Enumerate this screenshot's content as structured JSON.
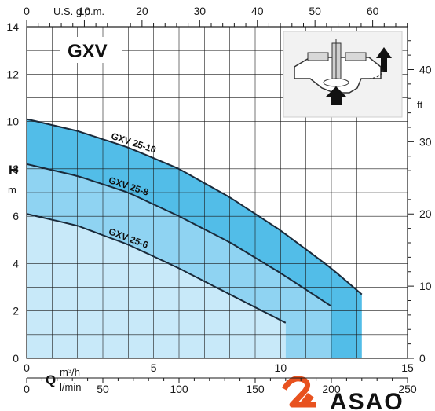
{
  "chart_data": {
    "type": "line",
    "title": "GXV",
    "y_axis": {
      "symbol": "H",
      "unit": "m",
      "range": [
        0,
        14
      ],
      "ticks": [
        "0",
        "2",
        "4",
        "6",
        "8",
        "10",
        "12",
        "14"
      ]
    },
    "y_axis_right": {
      "unit": "ft",
      "ticks": [
        "0",
        "10",
        "20",
        "30",
        "40"
      ]
    },
    "x_axis": {
      "symbol": "Q",
      "unit": "m³/h",
      "range": [
        0,
        15
      ],
      "ticks": [
        "0",
        "5",
        "10",
        "15"
      ]
    },
    "x_axis_lmin": {
      "unit": "l/min",
      "ticks": [
        "0",
        "50",
        "100",
        "150",
        "200",
        "250"
      ]
    },
    "x_axis_top": {
      "unit": "U.S. g.p.m.",
      "ticks": [
        "0",
        "10",
        "20",
        "30",
        "40",
        "50",
        "60"
      ]
    },
    "grid": true,
    "series": [
      {
        "name": "GXV 25-6",
        "x": [
          0,
          2,
          4,
          6,
          8,
          10.2
        ],
        "y": [
          6.1,
          5.6,
          4.8,
          3.8,
          2.7,
          1.5
        ]
      },
      {
        "name": "GXV 25-8",
        "x": [
          0,
          2,
          4,
          6,
          8,
          10,
          12
        ],
        "y": [
          8.2,
          7.7,
          7.0,
          6.0,
          4.9,
          3.6,
          2.2
        ]
      },
      {
        "name": "GXV 25-10",
        "x": [
          0,
          2,
          4,
          6,
          8,
          10,
          12,
          13.2
        ],
        "y": [
          10.1,
          9.6,
          8.9,
          8.0,
          6.8,
          5.4,
          3.8,
          2.7
        ]
      }
    ]
  },
  "logo": {
    "text": "ASAO",
    "color": "#e8521f"
  },
  "colors": {
    "band_light": "#c8e9f9",
    "band_mid": "#8fd3f2",
    "band_dark": "#52bde8",
    "curve": "#1a2a3a"
  }
}
